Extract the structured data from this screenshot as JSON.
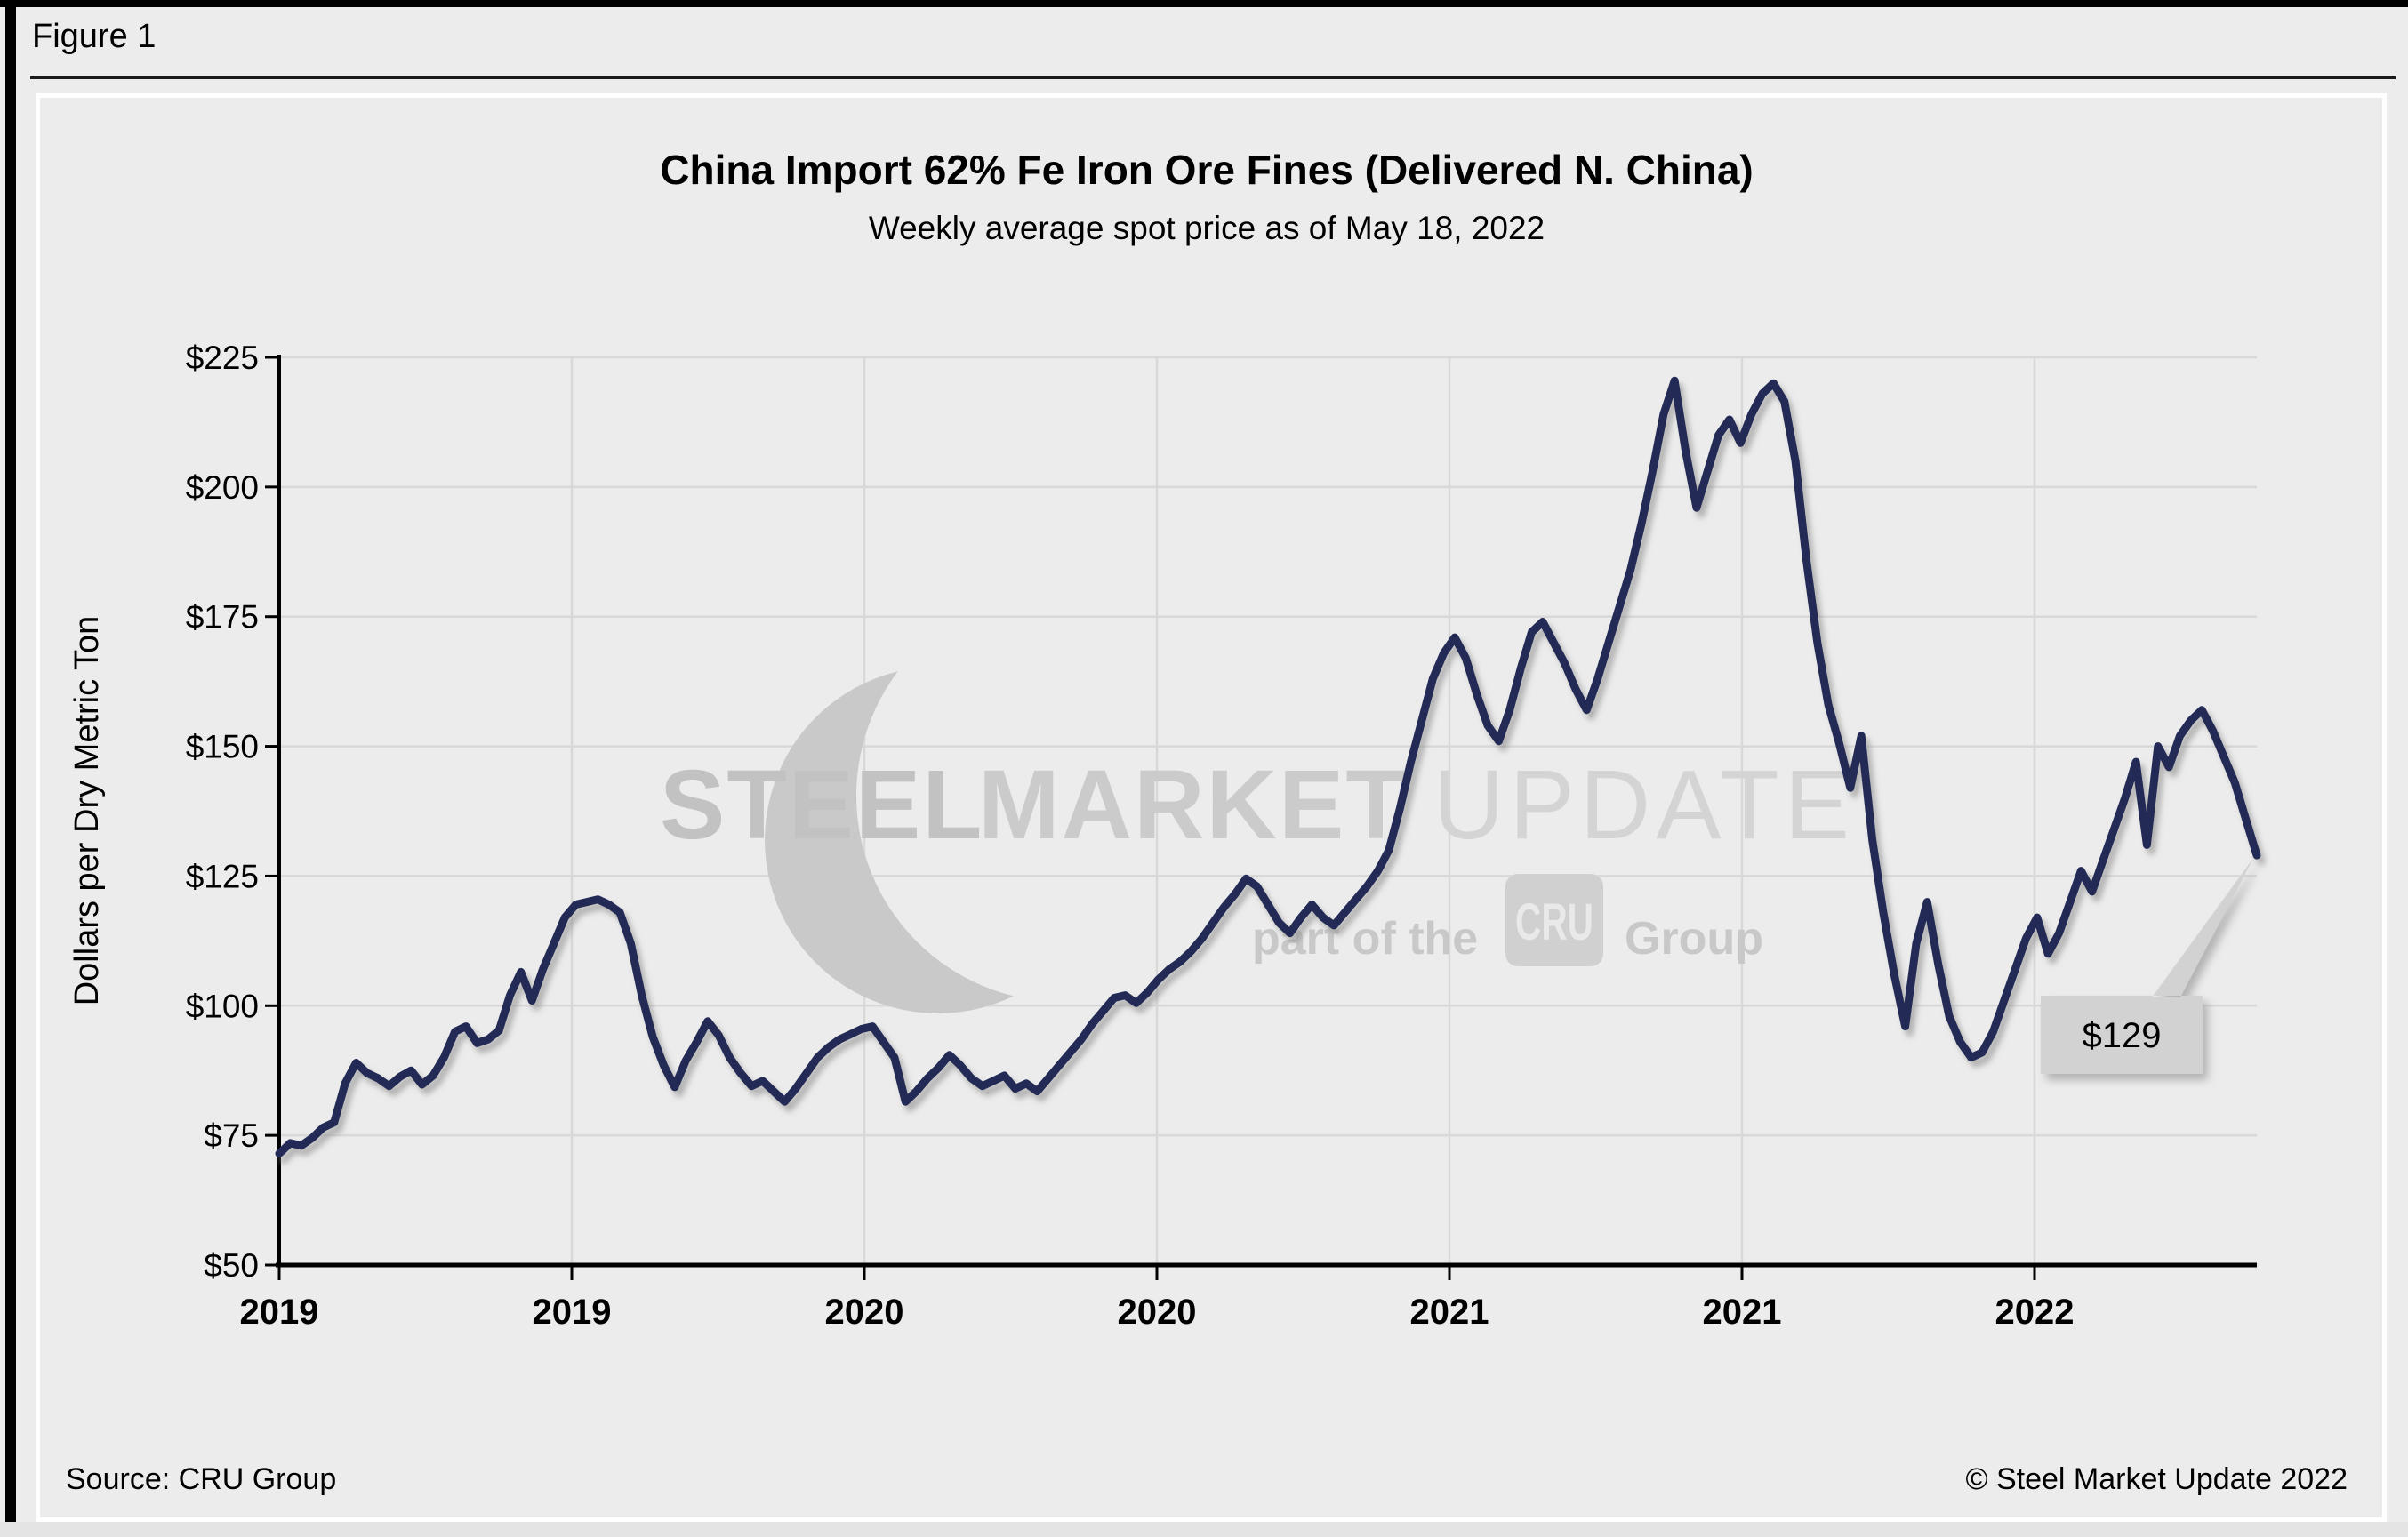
{
  "figure_label": "Figure 1",
  "header": {
    "title": "China Import 62% Fe Iron Ore Fines (Delivered N. China)",
    "subtitle": "Weekly average spot price as of May 18, 2022"
  },
  "footer": {
    "source": "Source: CRU Group",
    "copyright": "© Steel Market Update 2022"
  },
  "watermark": {
    "word1": "STEEL",
    "word2": "MARKET",
    "word3": "UPDATE",
    "tagline_prefix": "part of the",
    "badge": "CRU",
    "tagline_suffix": "Group"
  },
  "callout": {
    "label": "$129"
  },
  "colors": {
    "line": "#212b54",
    "grid": "#d8d8d8",
    "background": "#ececec",
    "callout_fill": "#d2d2d2",
    "axis": "#000000",
    "watermark_gray": "#c9c9c9"
  },
  "chart_data": {
    "type": "line",
    "title": "China Import 62% Fe Iron Ore Fines (Delivered N. China)",
    "subtitle": "Weekly average spot price as of May 18, 2022",
    "xlabel": "",
    "ylabel": "Dollars per Dry Metric Ton",
    "ylim": [
      50,
      225
    ],
    "y_ticks": [
      {
        "value": 50,
        "label": "$50"
      },
      {
        "value": 75,
        "label": "$75"
      },
      {
        "value": 100,
        "label": "$100"
      },
      {
        "value": 125,
        "label": "$125"
      },
      {
        "value": 150,
        "label": "$150"
      },
      {
        "value": 175,
        "label": "$175"
      },
      {
        "value": 200,
        "label": "$200"
      },
      {
        "value": 225,
        "label": "$225"
      }
    ],
    "x_tick_labels": [
      "2019",
      "2019",
      "2020",
      "2020",
      "2021",
      "2021",
      "2022"
    ],
    "x_tick_note": "ticks mark January and July of each year, Jan 2019 through Jan 2022; data runs weekly to May 18, 2022",
    "grid": true,
    "legend": "none",
    "last_point_label": "$129",
    "series": [
      {
        "name": "Weekly average spot price ($/dmt)",
        "start": "2019-01",
        "end": "2022-05-18",
        "interval": "weekly",
        "values": [
          71.5,
          73.5,
          73,
          74.5,
          76.5,
          77.5,
          85,
          89,
          87,
          86,
          84.5,
          86.3,
          87.5,
          84.8,
          86.5,
          90,
          95,
          96,
          92.8,
          93.5,
          95.2,
          102,
          106.5,
          101,
          107,
          112,
          117,
          119.5,
          120,
          120.5,
          119.5,
          118,
          112,
          102,
          94,
          88.5,
          84.3,
          89.4,
          93,
          97,
          94.3,
          90,
          87,
          84.5,
          85.5,
          83.5,
          81.5,
          84,
          87,
          90,
          92,
          93.5,
          94.5,
          95.5,
          96,
          93,
          90,
          81.5,
          83.5,
          86,
          88,
          90.5,
          88.5,
          86,
          84.5,
          85.5,
          86.5,
          84,
          85,
          83.5,
          86,
          88.5,
          91,
          93.5,
          96.5,
          99,
          101.5,
          102,
          100.5,
          102.5,
          105,
          107,
          108.5,
          110.5,
          113,
          116,
          119,
          121.5,
          124.5,
          123,
          119.5,
          116,
          114,
          117,
          119.5,
          117,
          115.5,
          118,
          120.5,
          123,
          126,
          130,
          138,
          147,
          155,
          163,
          168,
          171,
          167,
          160,
          154,
          151,
          157,
          165,
          172,
          174,
          170,
          166,
          161,
          157,
          163,
          170,
          177,
          184,
          193,
          203,
          214,
          220.5,
          207,
          196,
          203,
          210,
          213,
          208.5,
          214,
          218,
          220,
          216.5,
          205,
          186,
          170,
          158,
          150.5,
          142,
          152,
          132,
          118,
          106,
          96,
          112,
          120,
          108,
          98,
          93,
          90,
          91,
          95,
          101,
          107,
          113,
          117,
          110,
          114,
          120,
          126,
          122,
          128,
          134,
          140,
          147,
          131,
          150,
          146,
          152,
          155,
          157,
          153,
          148,
          143,
          136,
          129
        ]
      }
    ]
  }
}
